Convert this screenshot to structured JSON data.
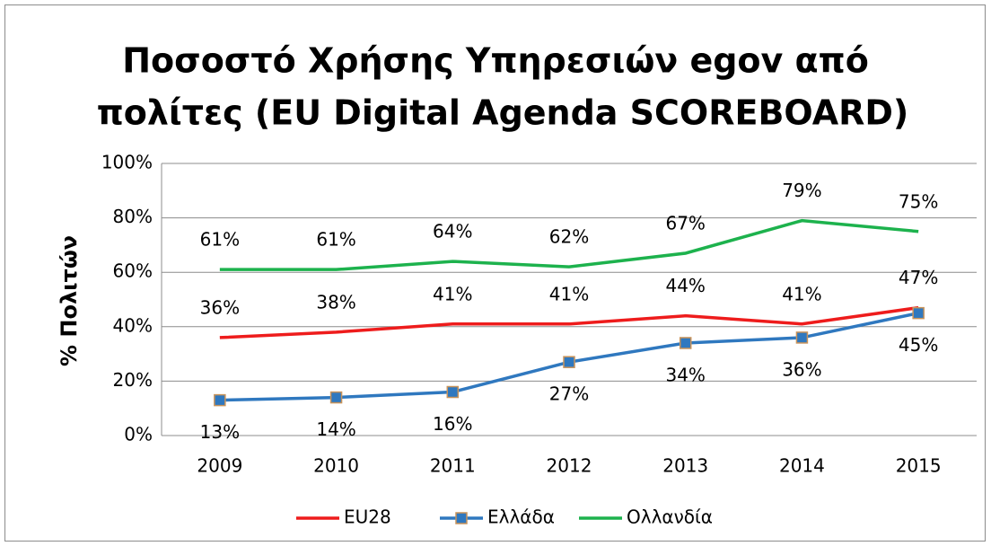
{
  "chart_data": {
    "type": "line",
    "title": [
      "Ποσοστό Χρήσης Υπηρεσιών egov από",
      "πολίτες (EU Digital Agenda SCOREBOARD)"
    ],
    "ylabel": "% Πολιτών",
    "categories": [
      "2009",
      "2010",
      "2011",
      "2012",
      "2013",
      "2014",
      "2015"
    ],
    "series": [
      {
        "name": "EU28",
        "color": "#ee1c1c",
        "values": [
          36,
          38,
          41,
          41,
          44,
          41,
          47
        ],
        "value_labels": [
          "36%",
          "38%",
          "41%",
          "41%",
          "44%",
          "41%",
          "47%"
        ],
        "label_position": "above"
      },
      {
        "name": "Ελλάδα",
        "color": "#2f78bf",
        "marker": "square",
        "values": [
          13,
          14,
          16,
          27,
          34,
          36,
          45
        ],
        "value_labels": [
          "13%",
          "14%",
          "16%",
          "27%",
          "34%",
          "36%",
          "45%"
        ],
        "label_position": "below"
      },
      {
        "name": "Ολλανδία",
        "color": "#1db24d",
        "values": [
          61,
          61,
          64,
          62,
          67,
          79,
          75
        ],
        "value_labels": [
          "61%",
          "61%",
          "64%",
          "62%",
          "67%",
          "79%",
          "75%"
        ],
        "label_position": "above"
      }
    ],
    "ylim": [
      0,
      100
    ],
    "yticks": [
      {
        "value": 0,
        "label": "0%"
      },
      {
        "value": 20,
        "label": "20%"
      },
      {
        "value": 40,
        "label": "40%"
      },
      {
        "value": 60,
        "label": "60%"
      },
      {
        "value": 80,
        "label": "80%"
      },
      {
        "value": 100,
        "label": "100%"
      }
    ],
    "grid": true,
    "legend": "bottom"
  }
}
